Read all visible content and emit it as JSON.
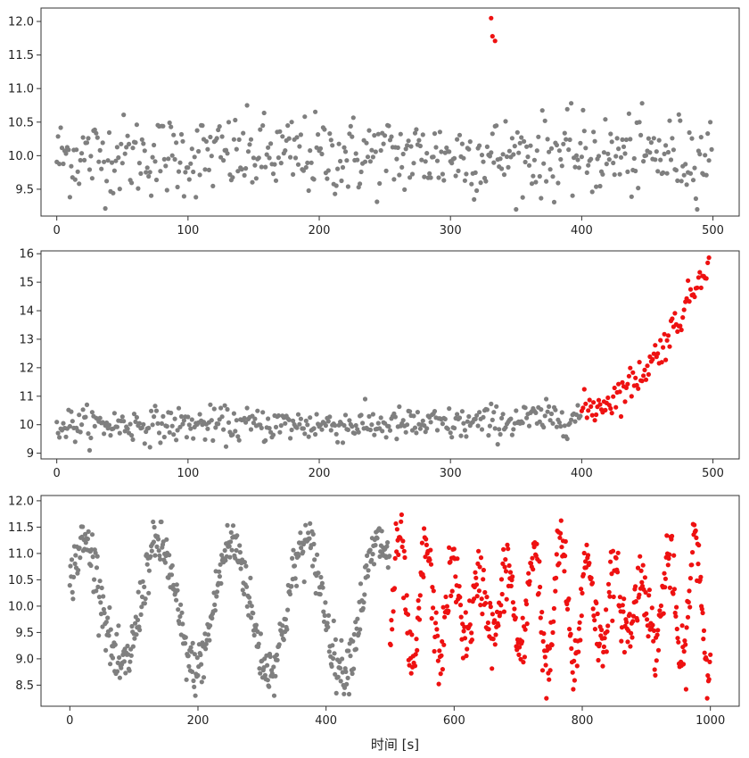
{
  "figure": {
    "xlabel": "时间 [s]",
    "colors": {
      "normal": "#7f7f7f",
      "anomaly": "#ee1111",
      "axes": "#333333",
      "background": "#ffffff"
    }
  },
  "chart_data": [
    {
      "type": "scatter",
      "title": "",
      "xlim": [
        -12,
        520
      ],
      "ylim": [
        9.1,
        12.2
      ],
      "xticks": [
        0,
        100,
        200,
        300,
        400,
        500
      ],
      "yticks": [
        9.5,
        10.0,
        10.5,
        11.0,
        11.5,
        12.0
      ],
      "ytick_labels": [
        "9.5",
        "10.0",
        "10.5",
        "11.0",
        "11.5",
        "12.0"
      ],
      "x_range": [
        0,
        499
      ],
      "baseline": {
        "mean": 10.0,
        "noise": 0.3
      },
      "anomaly_points": [
        [
          331,
          12.05
        ],
        [
          332,
          11.78
        ],
        [
          334,
          11.71
        ]
      ]
    },
    {
      "type": "scatter",
      "title": "",
      "xlim": [
        -12,
        520
      ],
      "ylim": [
        8.8,
        16.1
      ],
      "xticks": [
        0,
        100,
        200,
        300,
        400,
        500
      ],
      "yticks": [
        9,
        10,
        11,
        12,
        13,
        14,
        15,
        16
      ],
      "ytick_labels": [
        "9",
        "10",
        "11",
        "12",
        "13",
        "14",
        "15",
        "16"
      ],
      "normal_range": [
        0,
        400
      ],
      "anomaly_range": [
        400,
        499
      ],
      "baseline": {
        "mean": 10.0,
        "noise": 0.3
      },
      "trend_end_value": 15.6
    },
    {
      "type": "scatter",
      "title": "",
      "xlim": [
        -45,
        1045
      ],
      "ylim": [
        8.1,
        12.1
      ],
      "xticks": [
        0,
        200,
        400,
        600,
        800,
        1000
      ],
      "yticks": [
        8.5,
        9.0,
        9.5,
        10.0,
        10.5,
        11.0,
        11.5,
        12.0
      ],
      "ytick_labels": [
        "8.5",
        "9.0",
        "9.5",
        "10.0",
        "10.5",
        "11.0",
        "11.5",
        "12.0"
      ],
      "normal_range": [
        0,
        500
      ],
      "anomaly_range": [
        500,
        1000
      ],
      "normal_signal": {
        "mean": 10.0,
        "amplitude": 1.2,
        "period": 115,
        "noise": 0.25
      },
      "anomaly_signal": {
        "mean": 10.0,
        "amplitude": 1.0,
        "period": 42,
        "noise": 0.3
      }
    }
  ]
}
